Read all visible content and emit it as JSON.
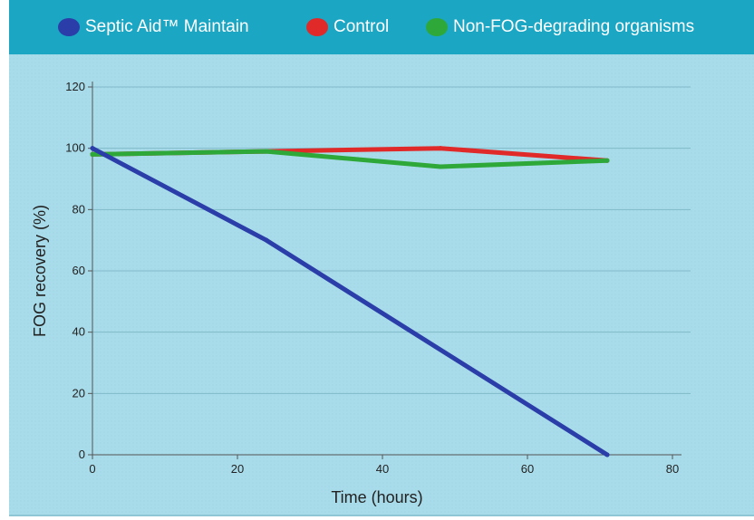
{
  "chart_data": {
    "type": "line",
    "title": "",
    "xlabel": "Time (hours)",
    "ylabel": "FOG recovery (%)",
    "xlim": [
      0,
      80
    ],
    "ylim": [
      0,
      120
    ],
    "x_ticks": [
      "0",
      "20",
      "40",
      "60",
      "80"
    ],
    "y_ticks": [
      "0",
      "20",
      "40",
      "60",
      "80",
      "100",
      "120"
    ],
    "grid": "horizontal",
    "legend_position": "top",
    "series": [
      {
        "name": "Septic Aid™ Maintain",
        "color": "#2a3da8",
        "points": [
          [
            0,
            100
          ],
          [
            24,
            70
          ],
          [
            71,
            0
          ]
        ]
      },
      {
        "name": "Control",
        "color": "#e02a2a",
        "points": [
          [
            0,
            98
          ],
          [
            24,
            99
          ],
          [
            48,
            100
          ],
          [
            71,
            96
          ]
        ]
      },
      {
        "name": "Non-FOG-degrading organisms",
        "color": "#2fa83a",
        "points": [
          [
            0,
            98
          ],
          [
            24,
            99
          ],
          [
            48,
            94
          ],
          [
            71,
            96
          ]
        ]
      }
    ]
  }
}
